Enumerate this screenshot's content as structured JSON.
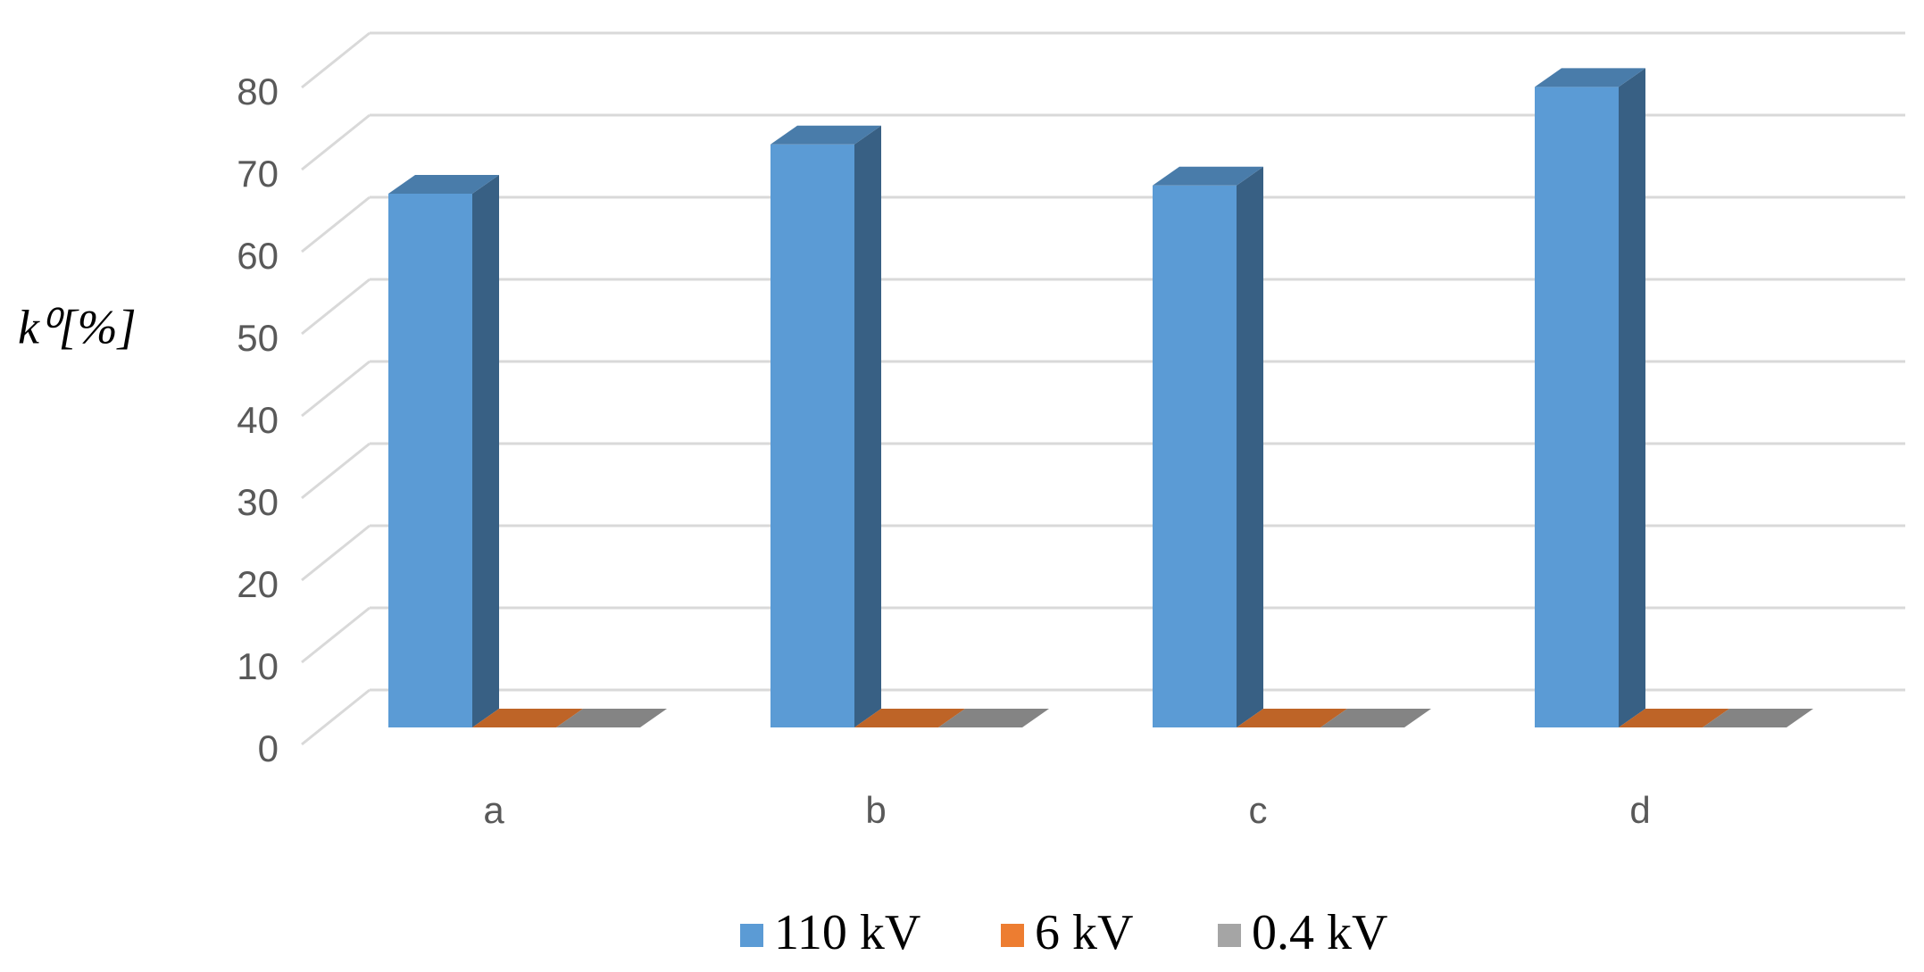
{
  "chart_data": {
    "type": "bar3d",
    "y_label": "k⁰[%]",
    "categories": [
      "a",
      "b",
      "c",
      "d"
    ],
    "series": [
      {
        "name": "110 kV",
        "color": "#5b9bd5",
        "values": [
          65,
          71,
          66,
          78
        ]
      },
      {
        "name": "6 kV",
        "color": "#ed7d31",
        "values": [
          0,
          0,
          0,
          0
        ]
      },
      {
        "name": "0.4 kV",
        "color": "#a5a5a5",
        "values": [
          0,
          0,
          0,
          0
        ]
      }
    ],
    "ylim": [
      0,
      80
    ],
    "yticks": [
      0,
      10,
      20,
      30,
      40,
      50,
      60,
      70,
      80
    ],
    "grid": true,
    "legend": "bottom"
  }
}
